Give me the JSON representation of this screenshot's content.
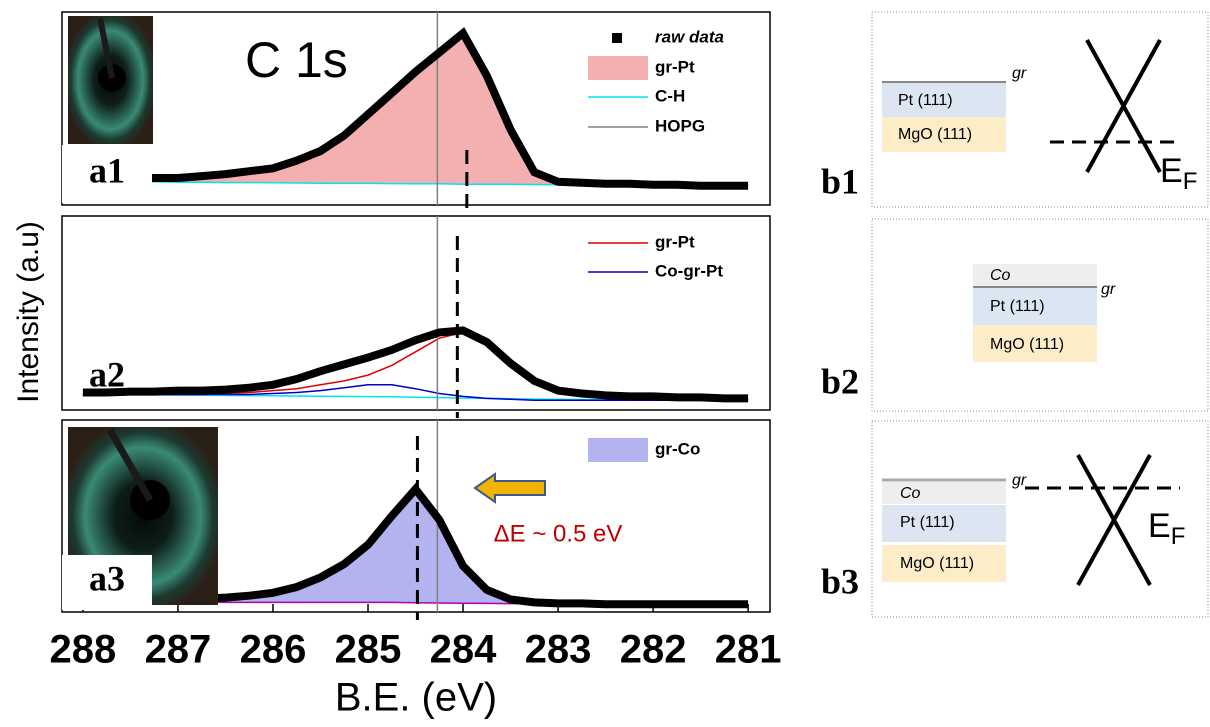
{
  "chart_data": [
    {
      "type": "line",
      "title": "C 1s",
      "label": "a1",
      "x": [
        288,
        287.75,
        287.5,
        287.25,
        287,
        286.75,
        286.5,
        286.25,
        286,
        285.75,
        285.5,
        285.25,
        285,
        284.75,
        284.5,
        284.25,
        284,
        283.75,
        283.5,
        283.25,
        283,
        282.75,
        282.5,
        282.25,
        282,
        281.75,
        281.5,
        281.25,
        281
      ],
      "xlim": [
        288.22,
        280.77
      ],
      "ylim": [
        0,
        1
      ],
      "dashed_x": [
        283.96
      ],
      "series": [
        {
          "name": "raw data",
          "type": "markers",
          "color": "#000000",
          "values": [
            0.13,
            0.13,
            0.135,
            0.14,
            0.14,
            0.15,
            0.16,
            0.175,
            0.19,
            0.23,
            0.28,
            0.36,
            0.47,
            0.58,
            0.69,
            0.79,
            0.89,
            0.67,
            0.39,
            0.17,
            0.12,
            0.115,
            0.11,
            0.11,
            0.105,
            0.105,
            0.1,
            0.1,
            0.1
          ]
        },
        {
          "name": "gr-Pt",
          "type": "area",
          "color": "#f4b0b0",
          "values": [
            0.13,
            0.13,
            0.135,
            0.14,
            0.14,
            0.15,
            0.16,
            0.175,
            0.19,
            0.23,
            0.28,
            0.36,
            0.47,
            0.58,
            0.69,
            0.79,
            0.89,
            0.67,
            0.39,
            0.17,
            0.12,
            0.115,
            0.11,
            0.11,
            0.105,
            0.105,
            0.1,
            0.1,
            0.1
          ]
        },
        {
          "name": "C-H",
          "type": "line",
          "color": "#00e5ee",
          "values": [
            0.12,
            0.12,
            0.12,
            0.12,
            0.118,
            0.118,
            0.116,
            0.116,
            0.115,
            0.114,
            0.113,
            0.112,
            0.112,
            0.111,
            0.11,
            0.11,
            0.108,
            0.108,
            0.107,
            0.106,
            0.105,
            0.105,
            0.104,
            0.104,
            0.103,
            0.102,
            0.102,
            0.101,
            0.1
          ]
        },
        {
          "name": "HOPG",
          "type": "vline",
          "color": "#808080",
          "x": 284.27
        }
      ]
    },
    {
      "type": "line",
      "label": "a2",
      "ylabel": "Intensity (a.u)",
      "x": [
        288,
        287.75,
        287.5,
        287.25,
        287,
        286.75,
        286.5,
        286.25,
        286,
        285.75,
        285.5,
        285.25,
        285,
        284.75,
        284.5,
        284.25,
        284,
        283.75,
        283.5,
        283.25,
        283,
        282.75,
        282.5,
        282.25,
        282,
        281.75,
        281.5,
        281.25,
        281
      ],
      "xlim": [
        288.22,
        280.77
      ],
      "ylim": [
        0,
        1
      ],
      "dashed_x": [
        284.06
      ],
      "series": [
        {
          "type": "markers",
          "color": "#000000",
          "values": [
            0.09,
            0.09,
            0.095,
            0.095,
            0.1,
            0.1,
            0.105,
            0.115,
            0.13,
            0.16,
            0.2,
            0.235,
            0.27,
            0.31,
            0.36,
            0.4,
            0.41,
            0.35,
            0.24,
            0.15,
            0.1,
            0.085,
            0.075,
            0.07,
            0.07,
            0.065,
            0.065,
            0.06,
            0.06
          ]
        },
        {
          "type": "line",
          "color": "#00e5ee",
          "values": [
            0.08,
            0.08,
            0.079,
            0.078,
            0.077,
            0.076,
            0.075,
            0.074,
            0.073,
            0.072,
            0.071,
            0.07,
            0.069,
            0.068,
            0.066,
            0.064,
            0.062,
            0.06,
            0.058,
            0.056,
            0.055,
            0.054,
            0.053,
            0.052,
            0.052,
            0.051,
            0.051,
            0.05,
            0.05
          ]
        },
        {
          "name": "gr-Pt",
          "type": "line",
          "color": "#e00000",
          "values": [
            0.08,
            0.08,
            0.08,
            0.08,
            0.08,
            0.08,
            0.085,
            0.09,
            0.1,
            0.11,
            0.13,
            0.15,
            0.18,
            0.23,
            0.3,
            0.37,
            0.4,
            0.35,
            0.24,
            0.15,
            0.1,
            0.085,
            0.075,
            0.07,
            0.07,
            0.065,
            0.065,
            0.06,
            0.06
          ]
        },
        {
          "name": "Co-gr-Pt",
          "type": "line",
          "color": "#0000c8",
          "values": [
            0.08,
            0.08,
            0.08,
            0.08,
            0.08,
            0.08,
            0.08,
            0.08,
            0.085,
            0.09,
            0.1,
            0.115,
            0.13,
            0.13,
            0.11,
            0.085,
            0.07,
            0.06,
            0.055,
            0.05,
            0.05,
            0.05,
            0.05,
            0.05,
            0.05,
            0.05,
            0.05,
            0.05,
            0.05
          ]
        },
        {
          "type": "vline",
          "color": "#808080",
          "x": 284.27
        }
      ]
    },
    {
      "type": "line",
      "label": "a3",
      "xlabel": "B.E. (eV)",
      "x": [
        288,
        287.75,
        287.5,
        287.25,
        287,
        286.75,
        286.5,
        286.25,
        286,
        285.75,
        285.5,
        285.25,
        285,
        284.75,
        284.5,
        284.25,
        284,
        283.75,
        283.5,
        283.25,
        283,
        282.75,
        282.5,
        282.25,
        282,
        281.75,
        281.5,
        281.25,
        281
      ],
      "xlim": [
        288.22,
        280.77
      ],
      "ylim": [
        0,
        1
      ],
      "xticks": [
        288,
        287,
        286,
        285,
        284,
        283,
        282,
        281
      ],
      "dashed_x": [
        284.48
      ],
      "annotation": "ΔE ~ 0.5 eV",
      "series": [
        {
          "type": "markers",
          "color": "#000000",
          "values": [
            0.06,
            0.06,
            0.06,
            0.065,
            0.065,
            0.07,
            0.075,
            0.085,
            0.1,
            0.13,
            0.18,
            0.25,
            0.35,
            0.5,
            0.64,
            0.48,
            0.24,
            0.115,
            0.065,
            0.05,
            0.045,
            0.045,
            0.04,
            0.04,
            0.04,
            0.04,
            0.04,
            0.04,
            0.04
          ]
        },
        {
          "name": "gr-Co",
          "type": "area",
          "color": "#b3b3f0",
          "values": [
            0.06,
            0.06,
            0.06,
            0.065,
            0.065,
            0.07,
            0.075,
            0.085,
            0.1,
            0.13,
            0.18,
            0.25,
            0.35,
            0.5,
            0.64,
            0.48,
            0.24,
            0.115,
            0.065,
            0.05,
            0.045,
            0.045,
            0.04,
            0.04,
            0.04,
            0.04,
            0.04,
            0.04,
            0.04
          ]
        },
        {
          "type": "line",
          "color": "#b000b0",
          "values": [
            0.05,
            0.05,
            0.05,
            0.05,
            0.05,
            0.05,
            0.05,
            0.05,
            0.05,
            0.05,
            0.05,
            0.05,
            0.05,
            0.05,
            0.048,
            0.047,
            0.046,
            0.045,
            0.044,
            0.043,
            0.042,
            0.041,
            0.04,
            0.04,
            0.04,
            0.04,
            0.04,
            0.04,
            0.04
          ]
        },
        {
          "type": "vline",
          "color": "#808080",
          "x": 284.27
        }
      ]
    }
  ],
  "diagrams": [
    {
      "label": "b1",
      "layers": [
        "Pt (111)",
        "MgO (111)"
      ],
      "gr": "gr",
      "fermi": {
        "main": "E",
        "sub": "F"
      }
    },
    {
      "label": "b2",
      "layers": [
        "Co",
        "Pt (111)",
        "MgO (111)"
      ],
      "gr": "gr"
    },
    {
      "label": "b3",
      "layers": [
        "Co",
        "Pt (111)",
        "MgO (111)"
      ],
      "gr": "gr",
      "fermi": {
        "main": "E",
        "sub": "F"
      }
    }
  ]
}
